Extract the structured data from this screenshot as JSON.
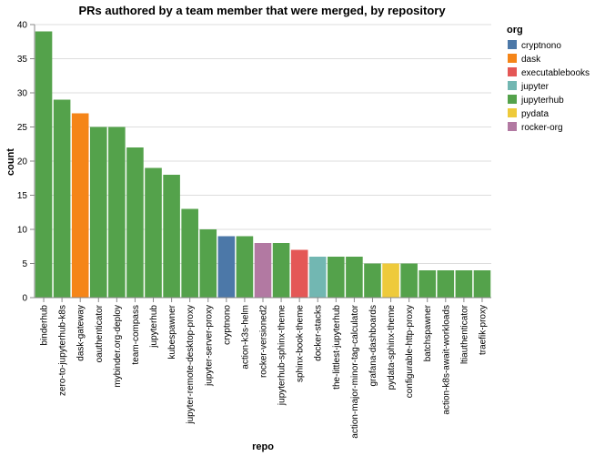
{
  "chart_data": {
    "type": "bar",
    "title": "PRs authored by a team member that were merged, by repository",
    "xlabel": "repo",
    "ylabel": "count",
    "ylim": [
      0,
      40
    ],
    "yticks": [
      0,
      5,
      10,
      15,
      20,
      25,
      30,
      35,
      40
    ],
    "grid": true,
    "legend_title": "org",
    "legend_position": "right",
    "orgs": [
      {
        "name": "cryptnono",
        "color": "#4c78a8"
      },
      {
        "name": "dask",
        "color": "#f58518"
      },
      {
        "name": "executablebooks",
        "color": "#e45756"
      },
      {
        "name": "jupyter",
        "color": "#72b7b2"
      },
      {
        "name": "jupyterhub",
        "color": "#54a24b"
      },
      {
        "name": "pydata",
        "color": "#eeca3b"
      },
      {
        "name": "rocker-org",
        "color": "#b279a2"
      }
    ],
    "bars": [
      {
        "repo": "binderhub",
        "value": 39,
        "org": "jupyterhub"
      },
      {
        "repo": "zero-to-jupyterhub-k8s",
        "value": 29,
        "org": "jupyterhub"
      },
      {
        "repo": "dask-gateway",
        "value": 27,
        "org": "dask"
      },
      {
        "repo": "oauthenticator",
        "value": 25,
        "org": "jupyterhub"
      },
      {
        "repo": "mybinder.org-deploy",
        "value": 25,
        "org": "jupyterhub"
      },
      {
        "repo": "team-compass",
        "value": 22,
        "org": "jupyterhub"
      },
      {
        "repo": "jupyterhub",
        "value": 19,
        "org": "jupyterhub"
      },
      {
        "repo": "kubespawner",
        "value": 18,
        "org": "jupyterhub"
      },
      {
        "repo": "jupyter-remote-desktop-proxy",
        "value": 13,
        "org": "jupyterhub"
      },
      {
        "repo": "jupyter-server-proxy",
        "value": 10,
        "org": "jupyterhub"
      },
      {
        "repo": "cryptnono",
        "value": 9,
        "org": "cryptnono"
      },
      {
        "repo": "action-k3s-helm",
        "value": 9,
        "org": "jupyterhub"
      },
      {
        "repo": "rocker-versioned2",
        "value": 8,
        "org": "rocker-org"
      },
      {
        "repo": "jupyterhub-sphinx-theme",
        "value": 8,
        "org": "jupyterhub"
      },
      {
        "repo": "sphinx-book-theme",
        "value": 7,
        "org": "executablebooks"
      },
      {
        "repo": "docker-stacks",
        "value": 6,
        "org": "jupyter"
      },
      {
        "repo": "the-littlest-jupyterhub",
        "value": 6,
        "org": "jupyterhub"
      },
      {
        "repo": "action-major-minor-tag-calculator",
        "value": 6,
        "org": "jupyterhub"
      },
      {
        "repo": "grafana-dashboards",
        "value": 5,
        "org": "jupyterhub"
      },
      {
        "repo": "pydata-sphinx-theme",
        "value": 5,
        "org": "pydata"
      },
      {
        "repo": "configurable-http-proxy",
        "value": 5,
        "org": "jupyterhub"
      },
      {
        "repo": "batchspawner",
        "value": 4,
        "org": "jupyterhub"
      },
      {
        "repo": "action-k8s-await-workloads",
        "value": 4,
        "org": "jupyterhub"
      },
      {
        "repo": "ltiauthenticator",
        "value": 4,
        "org": "jupyterhub"
      },
      {
        "repo": "traefik-proxy",
        "value": 4,
        "org": "jupyterhub"
      }
    ]
  }
}
